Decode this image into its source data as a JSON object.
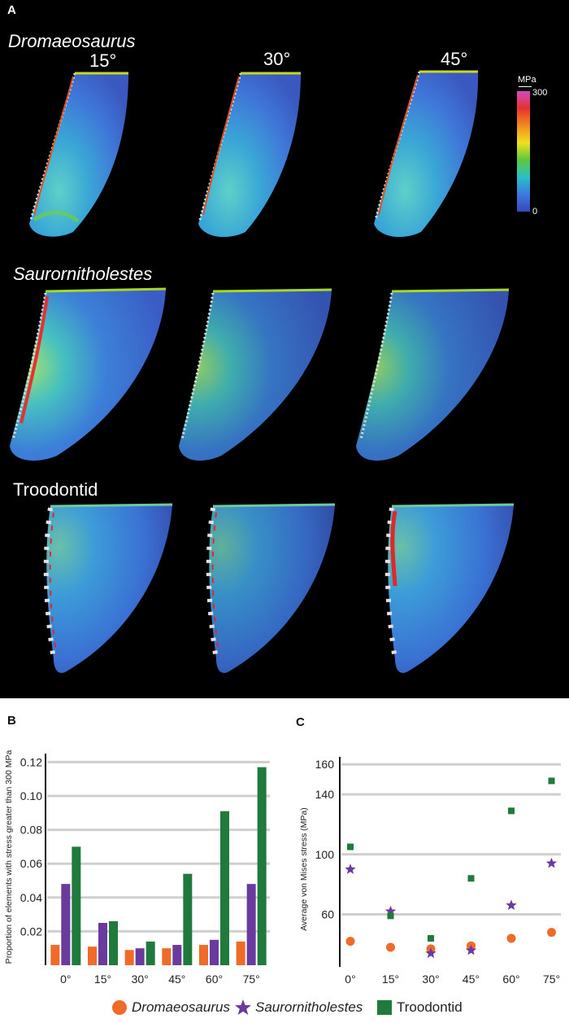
{
  "panel_a": {
    "label": "A",
    "angles": [
      "15°",
      "30°",
      "45°"
    ],
    "taxa": [
      {
        "name": "Dromaeosaurus",
        "italic": true
      },
      {
        "name": "Saurornitholestes",
        "italic": true
      },
      {
        "name": "Troodontid",
        "italic": false
      }
    ],
    "colorbar": {
      "unit": "MPa",
      "max": "300",
      "min": "0",
      "colors": [
        "#d04cc0",
        "#e83030",
        "#f08c20",
        "#f0e020",
        "#5cc83c",
        "#28c0c8",
        "#3c78e0",
        "#3848b8"
      ]
    }
  },
  "chart_data": [
    {
      "panel_label": "B",
      "type": "bar",
      "ylabel": "Proportion of elements with stress greater than 300 MPa",
      "ylim": [
        0,
        0.125
      ],
      "yticks": [
        "0.02",
        "0.04",
        "0.06",
        "0.08",
        "0.10",
        "0.12"
      ],
      "categories": [
        "0°",
        "15°",
        "30°",
        "45°",
        "60°",
        "75°"
      ],
      "series": [
        {
          "name": "Dromaeosaurus",
          "color": "#f06a28",
          "values": [
            0.012,
            0.011,
            0.009,
            0.01,
            0.012,
            0.014
          ]
        },
        {
          "name": "Saurornitholestes",
          "color": "#6a3a9e",
          "values": [
            0.048,
            0.025,
            0.01,
            0.012,
            0.015,
            0.048
          ]
        },
        {
          "name": "Troodontid",
          "color": "#1f7a3c",
          "values": [
            0.07,
            0.026,
            0.014,
            0.054,
            0.091,
            0.117
          ]
        }
      ],
      "grid": true
    },
    {
      "panel_label": "C",
      "type": "scatter",
      "ylabel": "Average von Mises stress (MPa)",
      "ylim": [
        25,
        165
      ],
      "yticks": [
        "60",
        "100",
        "140",
        "160"
      ],
      "categories": [
        "0°",
        "15°",
        "30°",
        "45°",
        "60°",
        "75°"
      ],
      "series": [
        {
          "name": "Dromaeosaurus",
          "color": "#f06a28",
          "marker": "circle",
          "values": [
            42,
            38,
            37,
            39,
            44,
            48
          ]
        },
        {
          "name": "Saurornitholestes",
          "color": "#6a3a9e",
          "marker": "star",
          "values": [
            90,
            62,
            34,
            36,
            66,
            94
          ]
        },
        {
          "name": "Troodontid",
          "color": "#1f7a3c",
          "marker": "square",
          "values": [
            105,
            59,
            44,
            84,
            129,
            149
          ]
        }
      ],
      "grid": true
    }
  ],
  "legend": [
    {
      "name": "Dromaeosaurus",
      "italic": true,
      "marker": "circle",
      "color": "#f06a28"
    },
    {
      "name": "Saurornitholestes",
      "italic": true,
      "marker": "star",
      "color": "#6a3a9e"
    },
    {
      "name": "Troodontid",
      "italic": false,
      "marker": "square",
      "color": "#1f7a3c"
    }
  ]
}
